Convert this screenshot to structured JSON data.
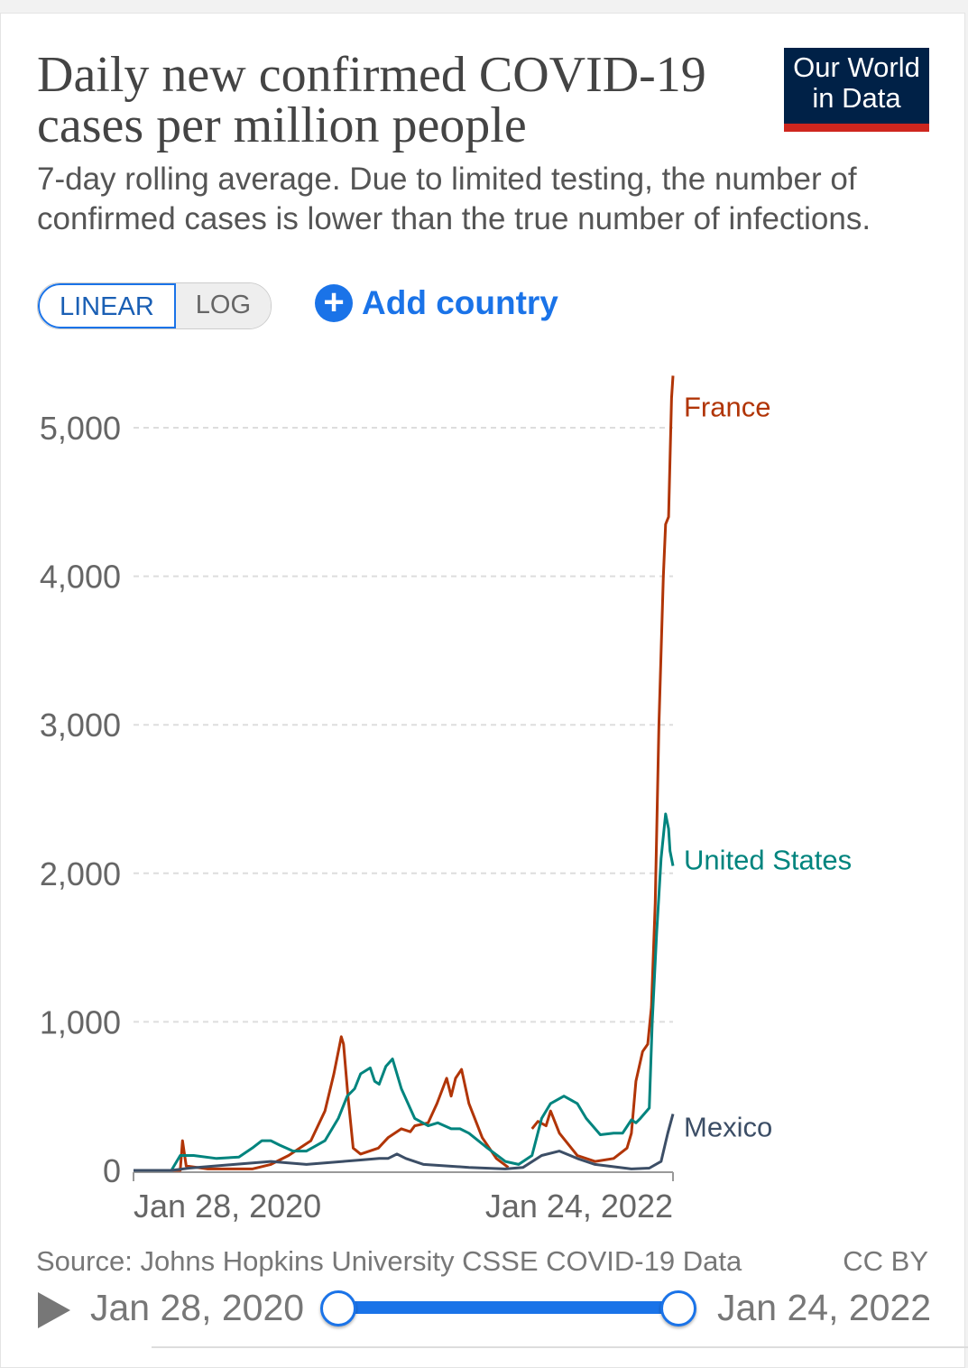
{
  "header": {
    "title": "Daily new confirmed COVID-19 cases per million people",
    "subtitle": "7-day rolling average. Due to limited testing, the number of confirmed cases is lower than the true number of infections.",
    "logo": "Our World in Data",
    "logo_line1": "Our World",
    "logo_line2": "in Data"
  },
  "controls": {
    "linear": "LINEAR",
    "log": "LOG",
    "add_country": "Add country"
  },
  "footer": {
    "source": "Source: Johns Hopkins University CSSE COVID-19 Data",
    "license": "CC BY",
    "start_date": "Jan 28, 2020",
    "end_date": "Jan 24, 2022"
  },
  "chart_data": {
    "type": "line",
    "title": "Daily new confirmed COVID-19 cases per million people",
    "x_unit": "days since Jan 28, 2020",
    "xlim": [
      0,
      727
    ],
    "ylim": [
      0,
      5000
    ],
    "xticks": [
      {
        "day": 0,
        "label": "Jan 28, 2020"
      },
      {
        "day": 727,
        "label": "Jan 24, 2022"
      }
    ],
    "yticks": [
      {
        "value": 0,
        "label": "0"
      },
      {
        "value": 1000,
        "label": "1,000"
      },
      {
        "value": 2000,
        "label": "2,000"
      },
      {
        "value": 3000,
        "label": "3,000"
      },
      {
        "value": 4000,
        "label": "4,000"
      },
      {
        "value": 5000,
        "label": "5,000"
      }
    ],
    "grid": true,
    "series": [
      {
        "name": "France",
        "color": "#b13507",
        "points": [
          [
            0,
            0
          ],
          [
            63,
            0
          ],
          [
            66,
            200
          ],
          [
            71,
            30
          ],
          [
            100,
            10
          ],
          [
            160,
            10
          ],
          [
            185,
            40
          ],
          [
            209,
            100
          ],
          [
            239,
            200
          ],
          [
            258,
            400
          ],
          [
            270,
            650
          ],
          [
            280,
            900
          ],
          [
            283,
            850
          ],
          [
            289,
            500
          ],
          [
            296,
            150
          ],
          [
            306,
            110
          ],
          [
            330,
            150
          ],
          [
            343,
            220
          ],
          [
            361,
            280
          ],
          [
            373,
            260
          ],
          [
            379,
            300
          ],
          [
            397,
            320
          ],
          [
            409,
            450
          ],
          [
            422,
            620
          ],
          [
            428,
            500
          ],
          [
            434,
            620
          ],
          [
            442,
            680
          ],
          [
            452,
            450
          ],
          [
            470,
            220
          ],
          [
            489,
            80
          ],
          [
            505,
            20
          ],
          null,
          [
            537,
            280
          ],
          [
            545,
            330
          ],
          [
            556,
            300
          ],
          [
            562,
            400
          ],
          [
            574,
            250
          ],
          [
            598,
            100
          ],
          [
            622,
            60
          ],
          [
            647,
            80
          ],
          [
            665,
            150
          ],
          [
            671,
            250
          ],
          [
            677,
            600
          ],
          [
            686,
            800
          ],
          [
            693,
            850
          ],
          [
            698,
            1100
          ],
          [
            703,
            1800
          ],
          [
            708,
            3000
          ],
          [
            714,
            4000
          ],
          [
            717,
            4350
          ],
          [
            721,
            4400
          ],
          [
            725,
            5200
          ],
          [
            727,
            5350
          ]
        ]
      },
      {
        "name": "United States",
        "color": "#00847e",
        "points": [
          [
            0,
            0
          ],
          [
            51,
            0
          ],
          [
            63,
            100
          ],
          [
            81,
            100
          ],
          [
            112,
            80
          ],
          [
            142,
            90
          ],
          [
            160,
            150
          ],
          [
            173,
            200
          ],
          [
            185,
            200
          ],
          [
            197,
            170
          ],
          [
            215,
            130
          ],
          [
            233,
            130
          ],
          [
            258,
            200
          ],
          [
            276,
            350
          ],
          [
            288,
            500
          ],
          [
            298,
            550
          ],
          [
            306,
            650
          ],
          [
            319,
            690
          ],
          [
            325,
            600
          ],
          [
            331,
            580
          ],
          [
            340,
            700
          ],
          [
            349,
            750
          ],
          [
            361,
            550
          ],
          [
            379,
            350
          ],
          [
            397,
            300
          ],
          [
            410,
            320
          ],
          [
            428,
            280
          ],
          [
            440,
            280
          ],
          [
            452,
            250
          ],
          [
            477,
            150
          ],
          [
            501,
            60
          ],
          [
            519,
            40
          ],
          [
            537,
            100
          ],
          [
            550,
            350
          ],
          [
            562,
            450
          ],
          [
            580,
            500
          ],
          [
            598,
            450
          ],
          [
            610,
            350
          ],
          [
            629,
            240
          ],
          [
            647,
            250
          ],
          [
            659,
            250
          ],
          [
            671,
            340
          ],
          [
            677,
            320
          ],
          [
            683,
            350
          ],
          [
            695,
            420
          ],
          [
            699,
            1000
          ],
          [
            705,
            1600
          ],
          [
            711,
            2100
          ],
          [
            717,
            2400
          ],
          [
            721,
            2300
          ],
          [
            723,
            2150
          ],
          [
            727,
            2050
          ]
        ]
      },
      {
        "name": "Mexico",
        "color": "#3c4e66",
        "points": [
          [
            0,
            0
          ],
          [
            51,
            0
          ],
          [
            75,
            15
          ],
          [
            136,
            40
          ],
          [
            185,
            60
          ],
          [
            233,
            40
          ],
          [
            282,
            60
          ],
          [
            306,
            70
          ],
          [
            331,
            80
          ],
          [
            343,
            80
          ],
          [
            355,
            110
          ],
          [
            367,
            80
          ],
          [
            391,
            40
          ],
          [
            452,
            20
          ],
          [
            501,
            10
          ],
          [
            525,
            20
          ],
          [
            550,
            100
          ],
          [
            574,
            130
          ],
          [
            598,
            80
          ],
          [
            622,
            40
          ],
          [
            671,
            10
          ],
          [
            695,
            15
          ],
          [
            711,
            60
          ],
          [
            720,
            250
          ],
          [
            727,
            380
          ]
        ]
      }
    ]
  }
}
